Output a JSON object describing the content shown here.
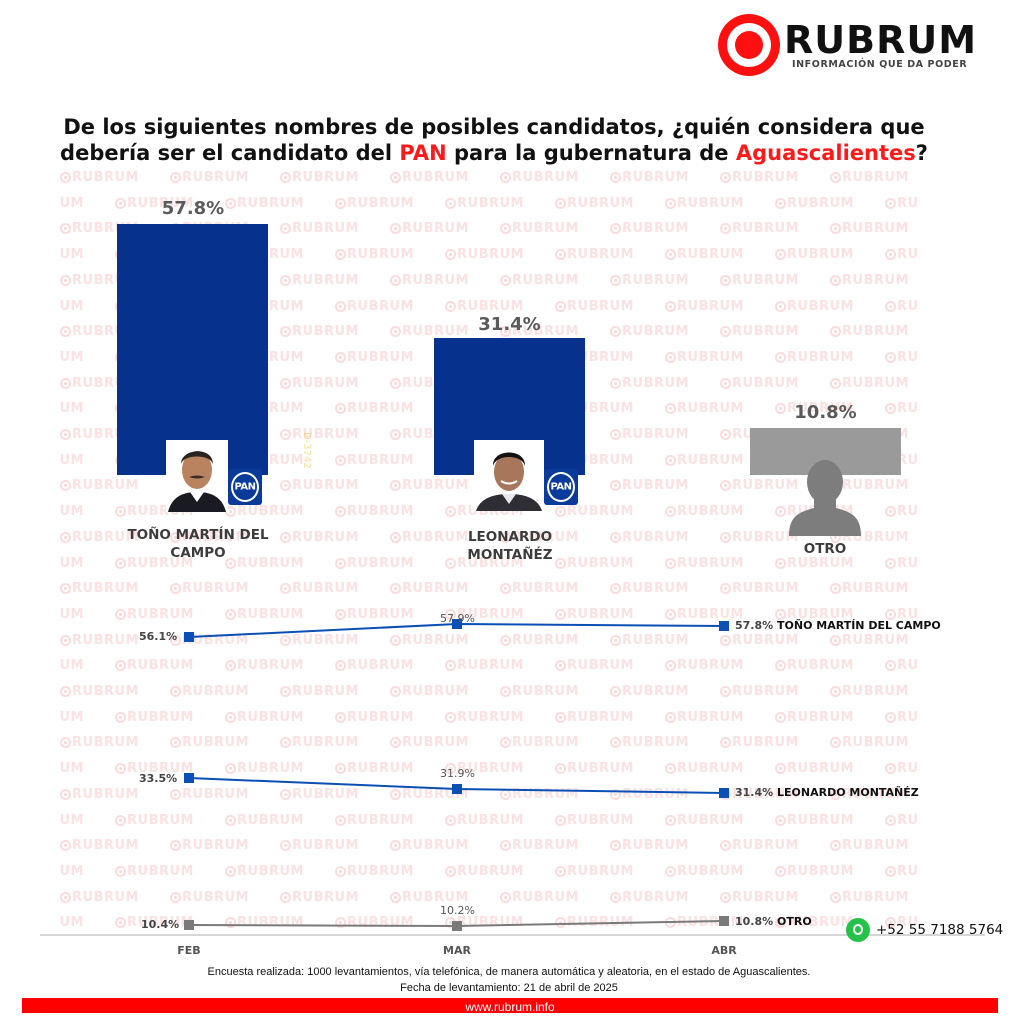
{
  "brand": {
    "name": "RUBRUM",
    "tagline": "INFORMACIÓN QUE DA PODER",
    "accent_color": "#ff1010",
    "watermark_text": "RUBRUM"
  },
  "title": {
    "line1": "De los siguientes nombres de posibles candidatos, ¿quién considera que",
    "line2_pre": "debería ser el candidato del ",
    "line2_party": "PAN",
    "line2_mid": " para la gubernatura de ",
    "line2_state": "Aguascalientes",
    "line2_post": "?"
  },
  "bars": [
    {
      "name_line1": "TOÑO MARTÍN DEL",
      "name_line2": "CAMPO",
      "value_label": "57.8%",
      "color": "#06318c",
      "party_badge": "PAN",
      "photo": "candidate-photo"
    },
    {
      "name_line1": "LEONARDO",
      "name_line2": "MONTAÑÉZ",
      "value_label": "31.4%",
      "color": "#06318c",
      "party_badge": "PAN",
      "photo": "candidate-photo"
    },
    {
      "name_line1": "OTRO",
      "name_line2": "",
      "value_label": "10.8%",
      "color": "#9a9a9a",
      "party_badge": "",
      "photo": "person-silhouette"
    }
  ],
  "trend": {
    "months": [
      "FEB",
      "MAR",
      "ABR"
    ],
    "series": [
      {
        "name": "TOÑO MARTÍN DEL CAMPO",
        "labels": [
          "56.1%",
          "57.9%",
          "57.8%"
        ],
        "color": "#0b4fb5"
      },
      {
        "name": "LEONARDO MONTAÑÉZ",
        "labels": [
          "33.5%",
          "31.9%",
          "31.4%"
        ],
        "color": "#0b4fb5"
      },
      {
        "name": "OTRO",
        "labels": [
          "10.4%",
          "10.2%",
          "10.8%"
        ],
        "color": "#7a7a7a"
      }
    ]
  },
  "contact": {
    "whatsapp": "+52 55 7188 5764"
  },
  "side_code": "D-3742",
  "footer": {
    "methodology": "Encuesta realizada: 1000 levantamientos, vía telefónica, de manera automática y aleatoria, en el estado de Aguascalientes.",
    "date": "Fecha de levantamiento: 21 de abril de 2025",
    "website": "www.rubrum.info"
  },
  "chart_data": [
    {
      "type": "bar",
      "title": "De los siguientes nombres de posibles candidatos, ¿quién considera que debería ser el candidato del PAN para la gubernatura de Aguascalientes?",
      "categories": [
        "TOÑO MARTÍN DEL CAMPO",
        "LEONARDO MONTAÑÉZ",
        "OTRO"
      ],
      "values": [
        57.8,
        31.4,
        10.8
      ],
      "unit": "%",
      "colors": [
        "#06318c",
        "#06318c",
        "#9a9a9a"
      ],
      "xlabel": "",
      "ylabel": "",
      "grid": false,
      "legend": "none"
    },
    {
      "type": "line",
      "title": "",
      "x": [
        "FEB",
        "MAR",
        "ABR"
      ],
      "series": [
        {
          "name": "TOÑO MARTÍN DEL CAMPO",
          "values": [
            56.1,
            57.9,
            57.8
          ]
        },
        {
          "name": "LEONARDO MONTAÑÉZ",
          "values": [
            33.5,
            31.9,
            31.4
          ]
        },
        {
          "name": "OTRO",
          "values": [
            10.4,
            10.2,
            10.8
          ]
        }
      ],
      "unit": "%",
      "grid": false,
      "legend": "inline labels at line ends (right)"
    }
  ]
}
